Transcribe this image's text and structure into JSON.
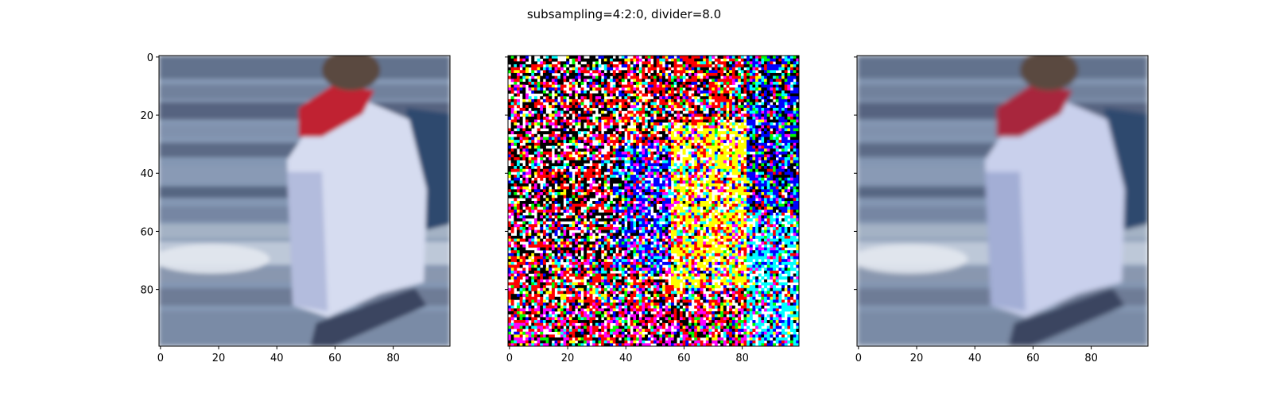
{
  "title": "subsampling=4:2:0, divider=8.0",
  "chart_data": [
    {
      "type": "image",
      "panel": "left",
      "content": "original image: blurred figure wearing a white top and red scarf against blue-grey background",
      "xlim": [
        -0.5,
        99.5
      ],
      "ylim": [
        99.5,
        -0.5
      ],
      "xticks": [
        0,
        20,
        40,
        60,
        80
      ],
      "yticks": [
        0,
        20,
        40,
        60,
        80
      ],
      "show_yticklabels": true
    },
    {
      "type": "image",
      "panel": "middle",
      "content": "quantized noise / difference pattern in saturated colors (red, yellow, blue, cyan, magenta, green, black, white)",
      "xlim": [
        -0.5,
        99.5
      ],
      "ylim": [
        99.5,
        -0.5
      ],
      "xticks": [
        0,
        20,
        40,
        60,
        80
      ],
      "yticks": [
        0,
        20,
        40,
        60,
        80
      ],
      "show_yticklabels": false
    },
    {
      "type": "image",
      "panel": "right",
      "content": "reconstructed image: same figure as left with slightly reduced chroma detail",
      "xlim": [
        -0.5,
        99.5
      ],
      "ylim": [
        99.5,
        -0.5
      ],
      "xticks": [
        0,
        20,
        40,
        60,
        80
      ],
      "yticks": [
        0,
        20,
        40,
        60,
        80
      ],
      "show_yticklabels": false
    }
  ],
  "colors": {
    "sky": "#8497b3",
    "water_dark": "#4b5a75",
    "shirt": "#d6dcf0",
    "scarf": "#c02030",
    "hair": "#5a4a40",
    "noise_palette": [
      "#ff0000",
      "#ffff00",
      "#0000ff",
      "#00ffff",
      "#ff00ff",
      "#00ff00",
      "#000000",
      "#ffffff"
    ]
  }
}
